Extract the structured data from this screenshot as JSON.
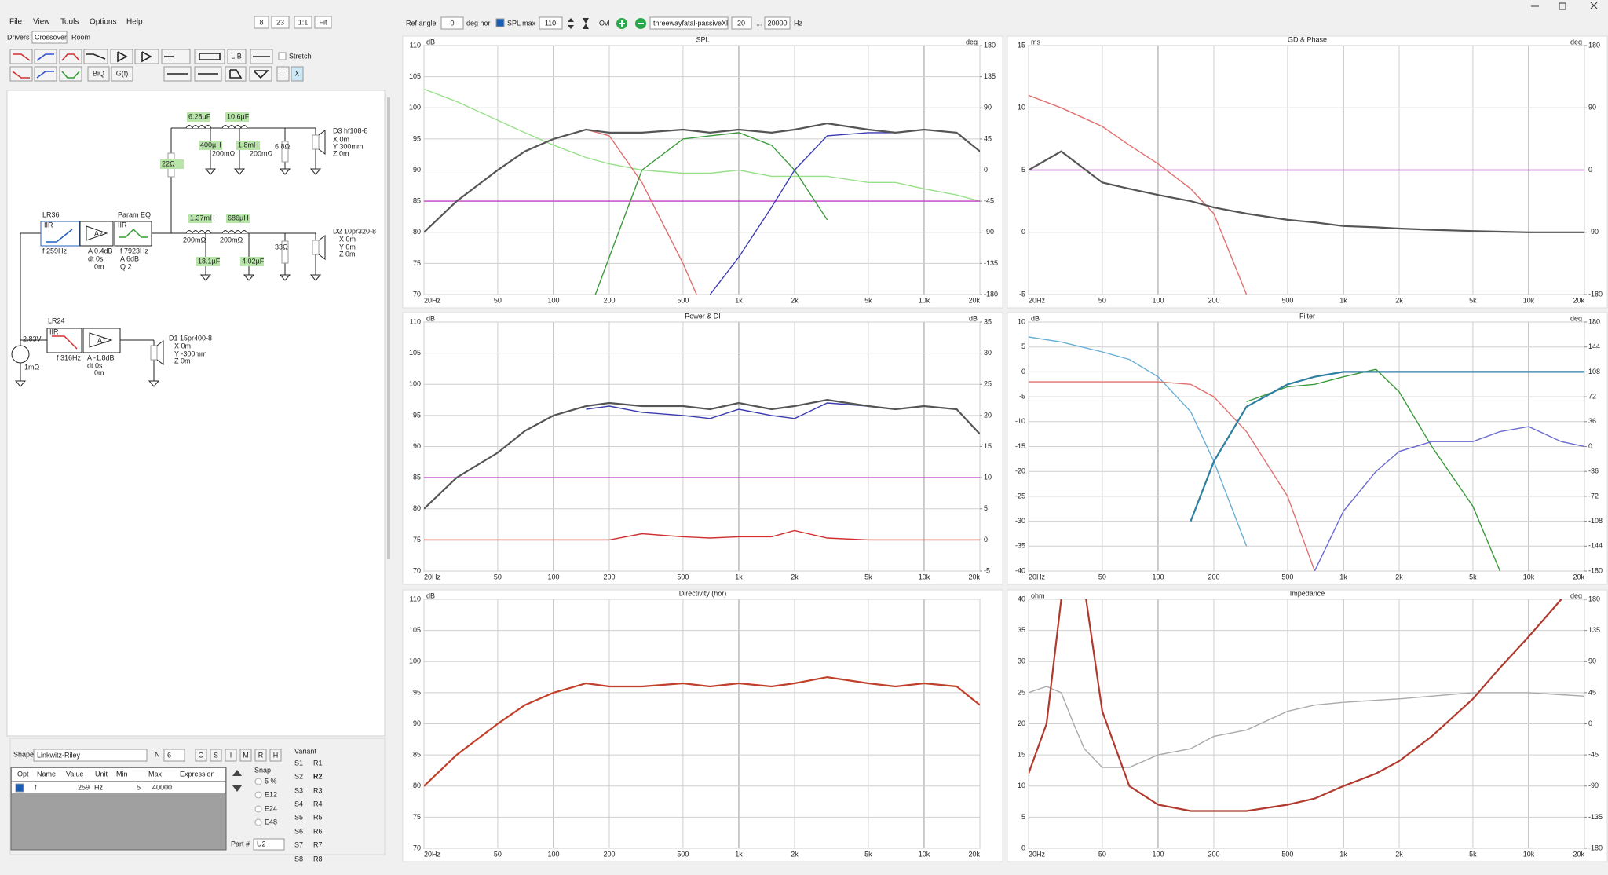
{
  "menu": [
    "File",
    "View",
    "Tools",
    "Options",
    "Help"
  ],
  "zoom_buttons": [
    "8",
    "23",
    "1:1",
    "Fit"
  ],
  "tabs": [
    "Drivers",
    "Crossover",
    "Room"
  ],
  "toolbar_buttons": [
    "LIB",
    "BiQ",
    "G(f)",
    "T",
    "X"
  ],
  "stretch": "Stretch",
  "schematic": {
    "labels": [
      "6.28µF",
      "10.6µF",
      "400µH",
      "200mΩ",
      "1.8mH",
      "200mΩ",
      "6.8Ω",
      "D3 hf108-8",
      "X 0m",
      "Y 300mm",
      "Z 0m",
      "22Ω",
      "LR36",
      "IIR",
      "A2",
      "Param EQ",
      "IIR",
      "1.37mH",
      "686µH",
      "200mΩ",
      "200mΩ",
      "D2 10pr320-8",
      "X 0m",
      "Y 0m",
      "Z 0m",
      "18.1µF",
      "4.02µF",
      "33Ω",
      "f  259Hz",
      "A 0.4dB",
      "dt 0s",
      "0m",
      "f  7923Hz",
      "A  6dB",
      "Q  2",
      "2.83V",
      "LR24",
      "IIR",
      "A1",
      "1mΩ",
      "f  316Hz",
      "A  -1.8dB",
      "dt 0s",
      "0m",
      "D1 15pr400-8",
      "X 0m",
      "Y -300mm",
      "Z 0m"
    ]
  },
  "shape_panel": {
    "shape_label": "Shape",
    "shape": "Linkwitz-Riley",
    "order_label": "N",
    "order": "6",
    "buttons": [
      "O",
      "S",
      "I",
      "M",
      "R",
      "H"
    ],
    "variant_label": "Variant",
    "s_variants": [
      "S1",
      "S2",
      "S3",
      "S4",
      "S5",
      "S6",
      "S7",
      "S8"
    ],
    "r_variants": [
      "R1",
      "R2",
      "R3",
      "R4",
      "R5",
      "R6",
      "R7",
      "R8"
    ],
    "table": {
      "columns": [
        "Opt",
        "Name",
        "Value",
        "Unit",
        "Min",
        "Max",
        "Expression"
      ],
      "rows": [
        [
          "f",
          259,
          "Hz",
          5,
          40000
        ]
      ]
    },
    "snap_label": "Snap",
    "snap_options": [
      "5 %",
      "E12",
      "E24",
      "E48"
    ],
    "part_label": "Part #",
    "part": "U2"
  },
  "top_bar": {
    "ref_angle_label": "Ref angle",
    "ref_angle": 0,
    "ref_angle_unit": "deg hor",
    "spl_max_label": "SPL max",
    "spl_max": 110,
    "overlay": "Ovl",
    "file": "threewayfatal-passiveXl",
    "f_min": 20,
    "range_sep": "...",
    "f_max": 20000,
    "f_unit": "Hz"
  },
  "chart_data": [
    {
      "type": "line",
      "title": "SPL",
      "y_label": "dB",
      "y2_label": "deg",
      "xscale": "log",
      "grid": true,
      "xlim": [
        20,
        20000
      ],
      "xticks": [
        {
          "value": 20,
          "label": "20Hz"
        },
        50,
        100,
        200,
        500,
        {
          "value": 1000,
          "label": "1k"
        },
        {
          "value": 2000,
          "label": "2k"
        },
        {
          "value": 5000,
          "label": "5k"
        },
        {
          "value": 10000,
          "label": "10k"
        },
        {
          "value": 20000,
          "label": "20k"
        }
      ],
      "ylim": [
        70,
        110
      ],
      "yticks": [
        70,
        75,
        80,
        85,
        90,
        95,
        100,
        105,
        110
      ],
      "y2lim": [
        -180,
        180
      ],
      "y2ticks": [
        -180,
        -135,
        -90,
        -45,
        0,
        45,
        90,
        135,
        180
      ],
      "x": [
        20,
        30,
        50,
        70,
        100,
        150,
        200,
        300,
        500,
        700,
        1000,
        1500,
        2000,
        3000,
        5000,
        7000,
        10000,
        15000,
        20000
      ],
      "series": [
        {
          "color": "#98e08a",
          "values": [
            103,
            101,
            98,
            96,
            94,
            92,
            91,
            90,
            89.5,
            89.5,
            90,
            89,
            89,
            89,
            88,
            88,
            87,
            86,
            85
          ]
        },
        {
          "color": "#c040c0",
          "values": [
            85,
            85,
            85,
            85,
            85,
            85,
            85,
            85,
            85,
            85,
            85,
            85,
            85,
            85,
            85,
            85,
            85,
            85,
            85
          ]
        },
        {
          "color": "#e07070",
          "values": [
            80,
            85,
            90,
            93,
            95,
            96.5,
            95.5,
            88,
            75,
            65,
            null,
            null,
            null,
            null,
            null,
            null,
            null,
            null,
            null
          ]
        },
        {
          "color": "#3c9a3c",
          "values": [
            null,
            null,
            null,
            null,
            null,
            66,
            76,
            90,
            95,
            95.5,
            96,
            94,
            90,
            82,
            null,
            null,
            null,
            null,
            null
          ]
        },
        {
          "color": "#3b3bb0",
          "values": [
            null,
            null,
            null,
            null,
            null,
            null,
            null,
            null,
            null,
            70,
            76,
            84,
            90,
            95.5,
            96,
            96,
            96.5,
            96,
            93
          ]
        },
        {
          "color": "#555555",
          "values": [
            80,
            85,
            90,
            93,
            95,
            96.5,
            96,
            96,
            96.5,
            96,
            96.5,
            96,
            96.5,
            97.5,
            96.5,
            96,
            96.5,
            96,
            93
          ]
        }
      ]
    },
    {
      "type": "line",
      "title": "GD & Phase",
      "y_label": "ms",
      "y2_label": "deg",
      "xscale": "log",
      "grid": true,
      "xlim": [
        20,
        20000
      ],
      "xticks": [
        {
          "value": 20,
          "label": "20Hz"
        },
        50,
        100,
        200,
        500,
        {
          "value": 1000,
          "label": "1k"
        },
        {
          "value": 2000,
          "label": "2k"
        },
        {
          "value": 5000,
          "label": "5k"
        },
        {
          "value": 10000,
          "label": "10k"
        },
        {
          "value": 20000,
          "label": "20k"
        }
      ],
      "ylim": [
        -5,
        15
      ],
      "yticks": [
        -5,
        0,
        5,
        10,
        15
      ],
      "y2lim": [
        -180,
        180
      ],
      "y2ticks": [
        -180,
        -90,
        0,
        90,
        180
      ],
      "x": [
        20,
        30,
        50,
        70,
        100,
        150,
        200,
        300,
        500,
        700,
        1000,
        1500,
        2000,
        3000,
        5000,
        7000,
        10000,
        15000,
        20000
      ],
      "series": [
        {
          "color": "#c040c0",
          "values": [
            5,
            5,
            5,
            5,
            5,
            5,
            5,
            5,
            5,
            5,
            5,
            5,
            5,
            5,
            5,
            5,
            5,
            5,
            5
          ]
        },
        {
          "color": "#e07070",
          "values": [
            11,
            10,
            8.5,
            7,
            5.5,
            3.5,
            1.5,
            -5,
            null,
            null,
            null,
            null,
            null,
            null,
            null,
            null,
            null,
            null,
            null
          ]
        },
        {
          "color": "#555555",
          "values": [
            5,
            6.5,
            4,
            3.5,
            3,
            2.5,
            2,
            1.5,
            1,
            0.8,
            0.5,
            0.4,
            0.3,
            0.2,
            0.1,
            0.05,
            0,
            0,
            0
          ]
        }
      ]
    },
    {
      "type": "line",
      "title": "Power & DI",
      "y_label": "dB",
      "y2_label": "dB",
      "xscale": "log",
      "grid": true,
      "xlim": [
        20,
        20000
      ],
      "xticks": [
        {
          "value": 20,
          "label": "20Hz"
        },
        50,
        100,
        200,
        500,
        {
          "value": 1000,
          "label": "1k"
        },
        {
          "value": 2000,
          "label": "2k"
        },
        {
          "value": 5000,
          "label": "5k"
        },
        {
          "value": 10000,
          "label": "10k"
        },
        {
          "value": 20000,
          "label": "20k"
        }
      ],
      "ylim": [
        70,
        110
      ],
      "yticks": [
        70,
        75,
        80,
        85,
        90,
        95,
        100,
        105,
        110
      ],
      "y2lim": [
        -5,
        35
      ],
      "y2ticks": [
        -5,
        0,
        5,
        10,
        15,
        20,
        25,
        30,
        35
      ],
      "x": [
        20,
        30,
        50,
        70,
        100,
        150,
        200,
        300,
        500,
        700,
        1000,
        1500,
        2000,
        3000,
        5000,
        7000,
        10000,
        15000,
        20000
      ],
      "series": [
        {
          "color": "#c040c0",
          "values": [
            85,
            85,
            85,
            85,
            85,
            85,
            85,
            85,
            85,
            85,
            85,
            85,
            85,
            85,
            85,
            85,
            85,
            85,
            85
          ]
        },
        {
          "color": "#d03030",
          "axis": "y2",
          "values": [
            0,
            0,
            0,
            0,
            0,
            0,
            0,
            1,
            0.5,
            0.3,
            0.5,
            0.5,
            1.5,
            0.3,
            0,
            0,
            0,
            0,
            0
          ]
        },
        {
          "color": "#3b3bb0",
          "values": [
            null,
            null,
            null,
            null,
            null,
            96,
            96.5,
            95.5,
            95,
            94.5,
            96,
            95,
            94.5,
            97,
            96.5,
            96,
            96.5,
            96,
            92
          ]
        },
        {
          "color": "#555555",
          "values": [
            80,
            85,
            89,
            92.5,
            95,
            96.5,
            97,
            96.5,
            96.5,
            96,
            97,
            96,
            96.5,
            97.5,
            96.5,
            96,
            96.5,
            96,
            92
          ]
        }
      ]
    },
    {
      "type": "line",
      "title": "Filter",
      "y_label": "dB",
      "y2_label": "deg",
      "xscale": "log",
      "grid": true,
      "xlim": [
        20,
        20000
      ],
      "xticks": [
        {
          "value": 20,
          "label": "20Hz"
        },
        50,
        100,
        200,
        500,
        {
          "value": 1000,
          "label": "1k"
        },
        {
          "value": 2000,
          "label": "2k"
        },
        {
          "value": 5000,
          "label": "5k"
        },
        {
          "value": 10000,
          "label": "10k"
        },
        {
          "value": 20000,
          "label": "20k"
        }
      ],
      "ylim": [
        -40,
        10
      ],
      "yticks": [
        -40,
        -35,
        -30,
        -25,
        -20,
        -15,
        -10,
        -5,
        0,
        5,
        10
      ],
      "y2lim": [
        -180,
        180
      ],
      "y2ticks": [
        -180,
        -144,
        -108,
        -72,
        -36,
        0,
        36,
        72,
        108,
        144,
        180
      ],
      "x": [
        20,
        30,
        50,
        70,
        100,
        150,
        200,
        300,
        500,
        700,
        1000,
        1500,
        2000,
        3000,
        5000,
        7000,
        10000,
        15000,
        20000
      ],
      "series": [
        {
          "color": "#6aaed6",
          "values": [
            7,
            6,
            4,
            2.5,
            -1,
            -8,
            -18,
            -35,
            null,
            null,
            null,
            null,
            null,
            null,
            null,
            null,
            null,
            null,
            null
          ]
        },
        {
          "color": "#e07070",
          "values": [
            -2,
            -2,
            -2,
            -2,
            -2,
            -2.5,
            -5,
            -12,
            -25,
            -40,
            null,
            null,
            null,
            null,
            null,
            null,
            null,
            null,
            null
          ]
        },
        {
          "color": "#3c9a3c",
          "values": [
            null,
            null,
            null,
            null,
            null,
            null,
            null,
            -6,
            -3,
            -2.5,
            -1,
            0.5,
            -4,
            -15,
            -27,
            -40,
            null,
            null,
            null
          ]
        },
        {
          "color": "#6a6ad0",
          "values": [
            null,
            null,
            null,
            null,
            null,
            null,
            null,
            null,
            null,
            -40,
            -28,
            -20,
            -16,
            -14,
            -14,
            -12,
            -11,
            -14,
            -15
          ]
        },
        {
          "color": "#2e7fa0",
          "values": [
            null,
            null,
            null,
            null,
            null,
            -30,
            -18,
            -7,
            -2.5,
            -1,
            0,
            0,
            0,
            0,
            0,
            0,
            0,
            0,
            0
          ]
        }
      ]
    },
    {
      "type": "line",
      "title": "Directivity (hor)",
      "y_label": "dB",
      "xscale": "log",
      "grid": true,
      "xlim": [
        20,
        20000
      ],
      "xticks": [
        {
          "value": 20,
          "label": "20Hz"
        },
        50,
        100,
        200,
        500,
        {
          "value": 1000,
          "label": "1k"
        },
        {
          "value": 2000,
          "label": "2k"
        },
        {
          "value": 5000,
          "label": "5k"
        },
        {
          "value": 10000,
          "label": "10k"
        },
        {
          "value": 20000,
          "label": "20k"
        }
      ],
      "ylim": [
        70,
        110
      ],
      "yticks": [
        70,
        75,
        80,
        85,
        90,
        95,
        100,
        105,
        110
      ],
      "x": [
        20,
        30,
        50,
        70,
        100,
        150,
        200,
        300,
        500,
        700,
        1000,
        1500,
        2000,
        3000,
        5000,
        7000,
        10000,
        15000,
        20000
      ],
      "series": [
        {
          "color": "#c0402a",
          "values": [
            80,
            85,
            90,
            93,
            95,
            96.5,
            96,
            96,
            96.5,
            96,
            96.5,
            96,
            96.5,
            97.5,
            96.5,
            96,
            96.5,
            96,
            93
          ]
        }
      ]
    },
    {
      "type": "line",
      "title": "Impedance",
      "y_label": "ohm",
      "y2_label": "deg",
      "xscale": "log",
      "grid": true,
      "xlim": [
        20,
        20000
      ],
      "xticks": [
        {
          "value": 20,
          "label": "20Hz"
        },
        50,
        100,
        200,
        500,
        {
          "value": 1000,
          "label": "1k"
        },
        {
          "value": 2000,
          "label": "2k"
        },
        {
          "value": 5000,
          "label": "5k"
        },
        {
          "value": 10000,
          "label": "10k"
        },
        {
          "value": 20000,
          "label": "20k"
        }
      ],
      "ylim": [
        0,
        40
      ],
      "yticks": [
        0,
        5,
        10,
        15,
        20,
        25,
        30,
        35,
        40
      ],
      "y2lim": [
        -180,
        180
      ],
      "y2ticks": [
        -180,
        -135,
        -90,
        -45,
        0,
        45,
        90,
        135,
        180
      ],
      "x": [
        20,
        25,
        30,
        35,
        40,
        50,
        70,
        100,
        150,
        200,
        300,
        500,
        700,
        1000,
        1500,
        2000,
        3000,
        5000,
        7000,
        10000,
        15000,
        20000
      ],
      "series": [
        {
          "color": "#aaaaaa",
          "axis": "y2",
          "values": [
            45,
            54,
            45,
            0,
            -36,
            -63,
            -63,
            -45,
            -36,
            -18,
            -9,
            18,
            27,
            31,
            34,
            36,
            40,
            45,
            45,
            45,
            42,
            40
          ]
        },
        {
          "color": "#b03a2e",
          "values": [
            12,
            20,
            40,
            48,
            42,
            22,
            10,
            7,
            6,
            6,
            6,
            7,
            8,
            10,
            12,
            14,
            18,
            24,
            29,
            34,
            40,
            44
          ]
        }
      ]
    }
  ]
}
